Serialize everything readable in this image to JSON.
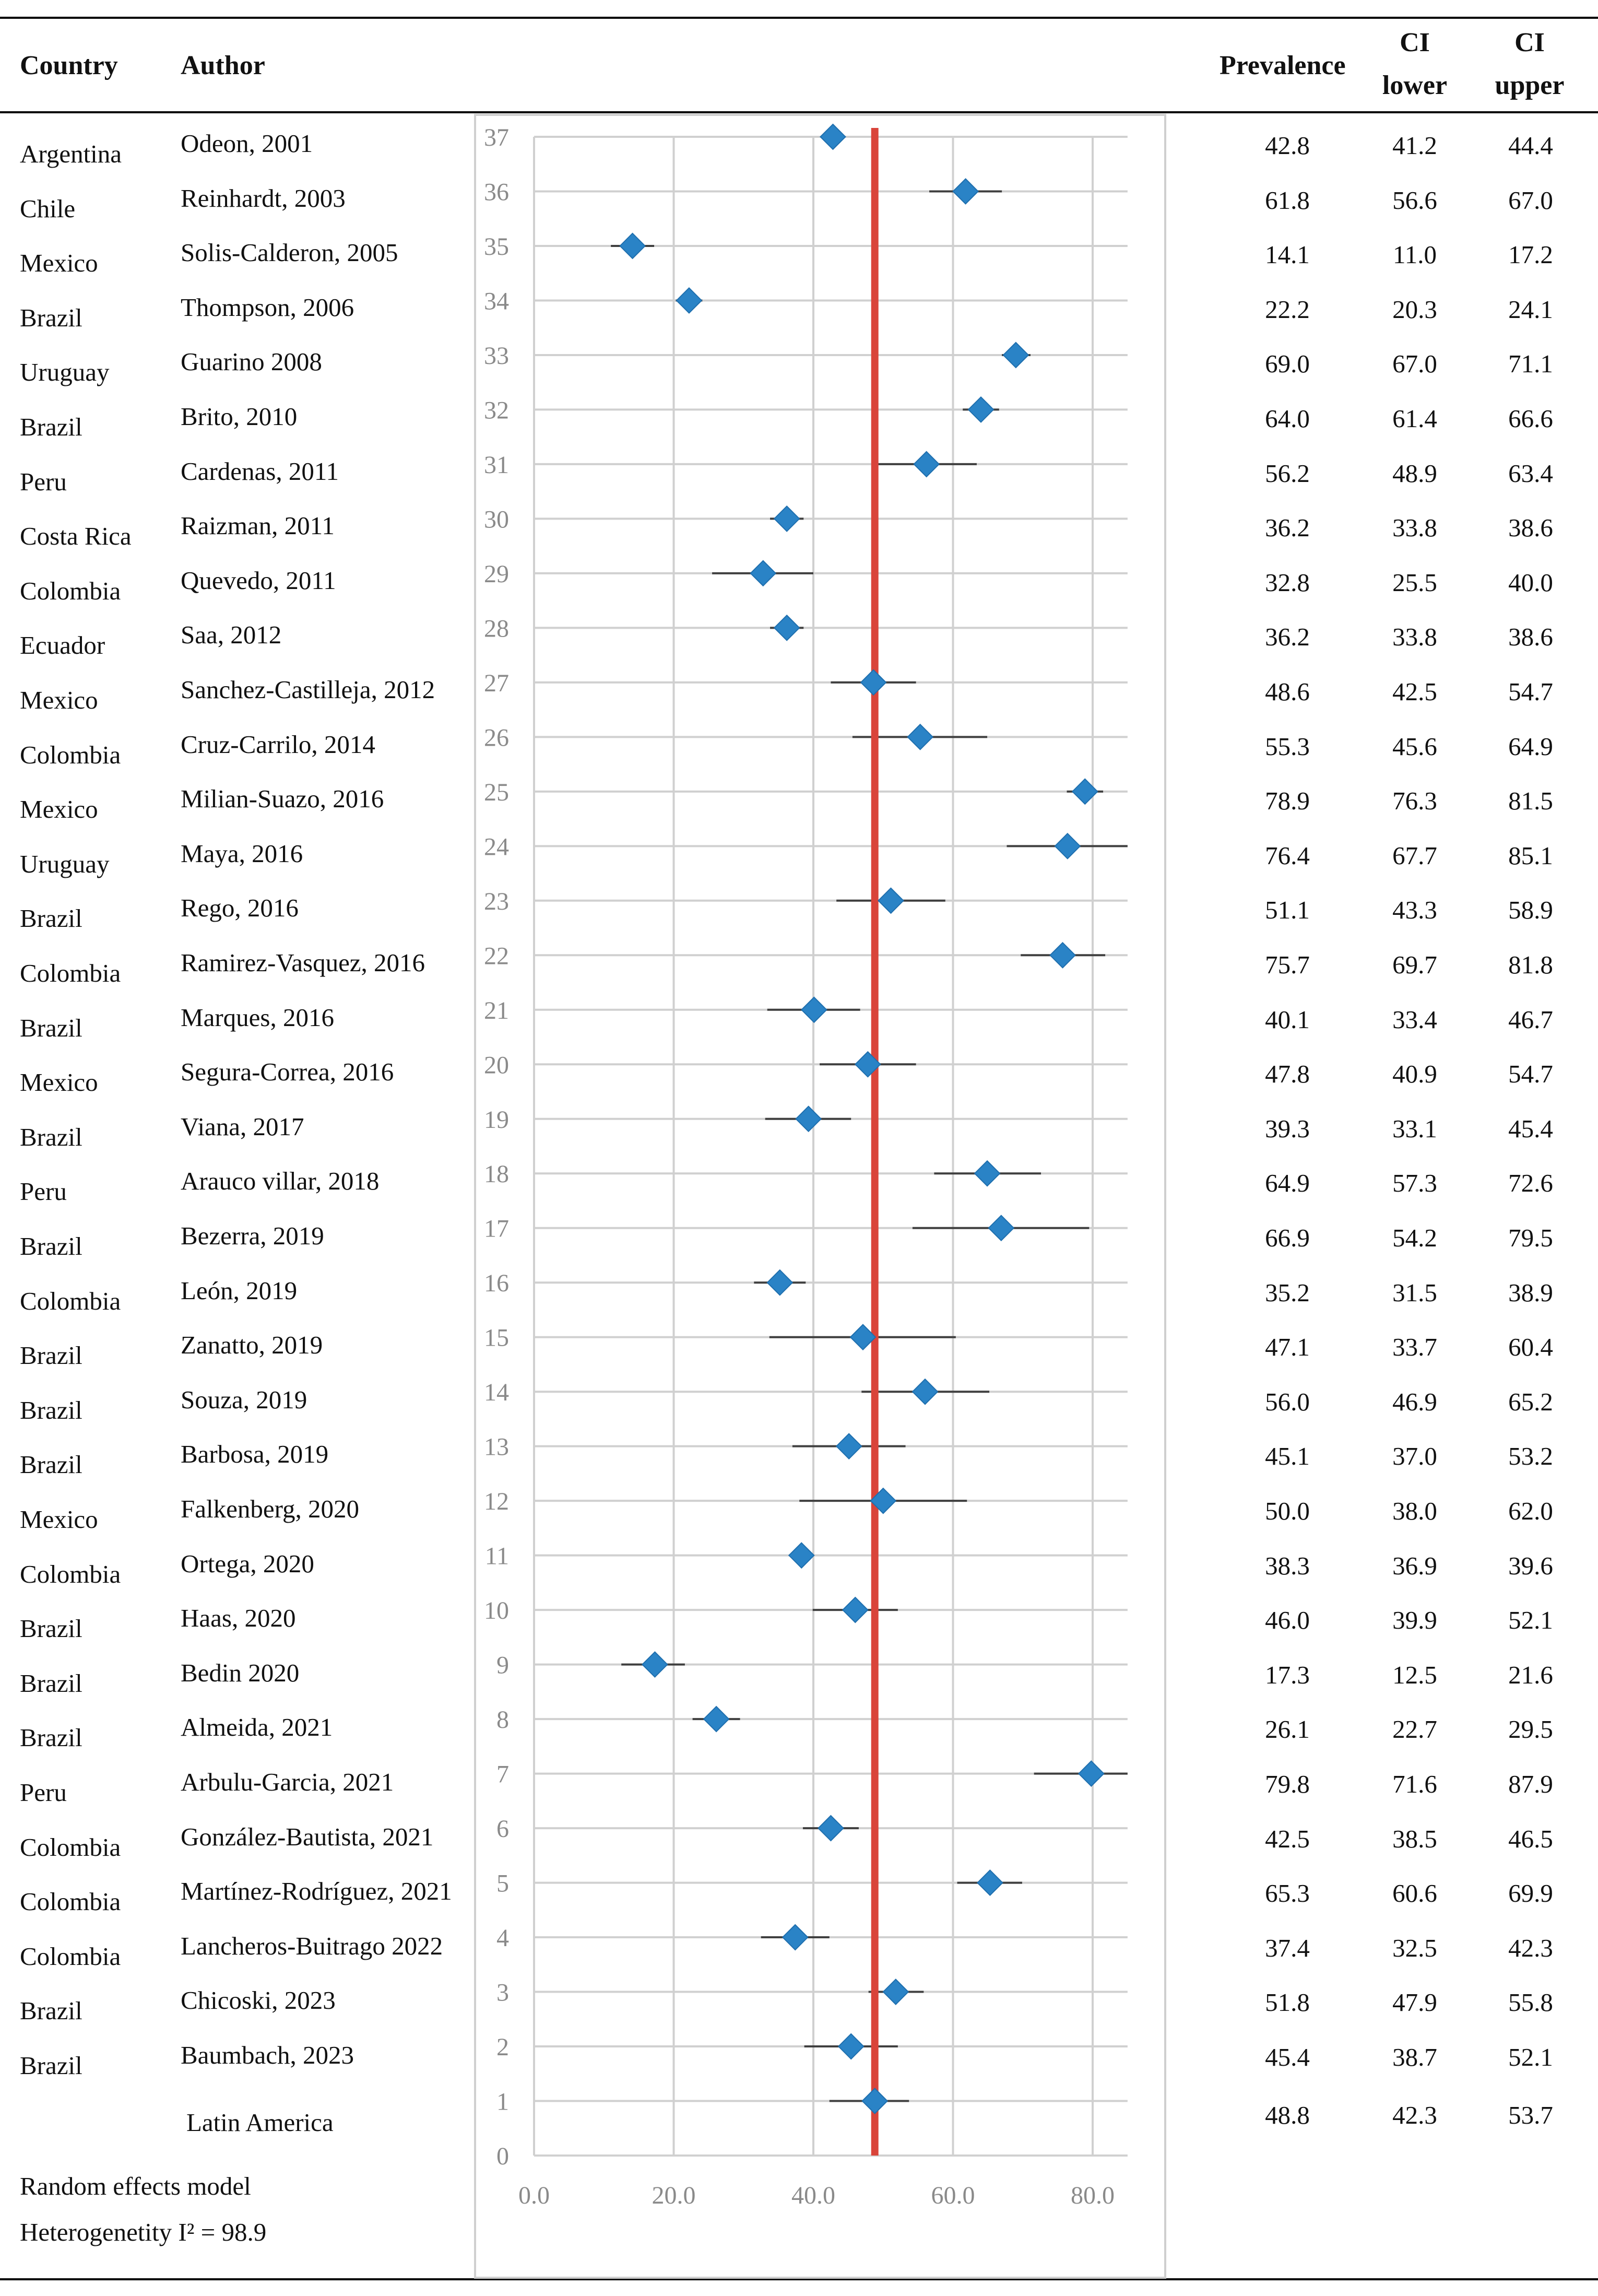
{
  "header": {
    "country": "Country",
    "author": "Author",
    "prevalence": "Prevalence",
    "ci_lower_line1": "CI",
    "ci_lower_line2": "lower",
    "ci_upper_line1": "CI",
    "ci_upper_line2": "upper"
  },
  "rows": [
    {
      "country": "Argentina",
      "author": "Odeon, 2001",
      "prev": "42.8",
      "lo": "41.2",
      "hi": "44.4"
    },
    {
      "country": "Chile",
      "author": "Reinhardt, 2003",
      "prev": "61.8",
      "lo": "56.6",
      "hi": "67.0"
    },
    {
      "country": "Mexico",
      "author": "Solis-Calderon, 2005",
      "prev": "14.1",
      "lo": "11.0",
      "hi": "17.2"
    },
    {
      "country": "Brazil",
      "author": "Thompson, 2006",
      "prev": "22.2",
      "lo": "20.3",
      "hi": "24.1"
    },
    {
      "country": "Uruguay",
      "author": "Guarino 2008",
      "prev": "69.0",
      "lo": "67.0",
      "hi": "71.1"
    },
    {
      "country": "Brazil",
      "author": "Brito, 2010",
      "prev": "64.0",
      "lo": "61.4",
      "hi": "66.6"
    },
    {
      "country": "Peru",
      "author": "Cardenas, 2011",
      "prev": "56.2",
      "lo": "48.9",
      "hi": "63.4"
    },
    {
      "country": "Costa Rica",
      "author": "Raizman, 2011",
      "prev": "36.2",
      "lo": "33.8",
      "hi": "38.6"
    },
    {
      "country": "Colombia",
      "author": "Quevedo, 2011",
      "prev": "32.8",
      "lo": "25.5",
      "hi": "40.0"
    },
    {
      "country": "Ecuador",
      "author": "Saa, 2012",
      "prev": "36.2",
      "lo": "33.8",
      "hi": "38.6"
    },
    {
      "country": "Mexico",
      "author": "Sanchez-Castilleja, 2012",
      "prev": "48.6",
      "lo": "42.5",
      "hi": "54.7"
    },
    {
      "country": "Colombia",
      "author": "Cruz-Carrilo, 2014",
      "prev": "55.3",
      "lo": "45.6",
      "hi": "64.9"
    },
    {
      "country": "Mexico",
      "author": "Milian-Suazo, 2016",
      "prev": "78.9",
      "lo": "76.3",
      "hi": "81.5"
    },
    {
      "country": "Uruguay",
      "author": "Maya, 2016",
      "prev": "76.4",
      "lo": "67.7",
      "hi": "85.1"
    },
    {
      "country": "Brazil",
      "author": "Rego, 2016",
      "prev": "51.1",
      "lo": "43.3",
      "hi": "58.9"
    },
    {
      "country": "Colombia",
      "author": "Ramirez-Vasquez, 2016",
      "prev": "75.7",
      "lo": "69.7",
      "hi": "81.8"
    },
    {
      "country": "Brazil",
      "author": "Marques, 2016",
      "prev": "40.1",
      "lo": "33.4",
      "hi": "46.7"
    },
    {
      "country": "Mexico",
      "author": "Segura-Correa, 2016",
      "prev": "47.8",
      "lo": "40.9",
      "hi": "54.7"
    },
    {
      "country": "Brazil",
      "author": "Viana, 2017",
      "prev": "39.3",
      "lo": "33.1",
      "hi": "45.4"
    },
    {
      "country": "Peru",
      "author": "Arauco villar, 2018",
      "prev": "64.9",
      "lo": "57.3",
      "hi": "72.6"
    },
    {
      "country": "Brazil",
      "author": "Bezerra, 2019",
      "prev": "66.9",
      "lo": "54.2",
      "hi": "79.5"
    },
    {
      "country": "Colombia",
      "author": "León, 2019",
      "prev": "35.2",
      "lo": "31.5",
      "hi": "38.9"
    },
    {
      "country": "Brazil",
      "author": "Zanatto, 2019",
      "prev": "47.1",
      "lo": "33.7",
      "hi": "60.4"
    },
    {
      "country": "Brazil",
      "author": "Souza, 2019",
      "prev": "56.0",
      "lo": "46.9",
      "hi": "65.2"
    },
    {
      "country": "Brazil",
      "author": "Barbosa, 2019",
      "prev": "45.1",
      "lo": "37.0",
      "hi": "53.2"
    },
    {
      "country": "Mexico",
      "author": "Falkenberg, 2020",
      "prev": "50.0",
      "lo": "38.0",
      "hi": "62.0"
    },
    {
      "country": "Colombia",
      "author": "Ortega, 2020",
      "prev": "38.3",
      "lo": "36.9",
      "hi": "39.6"
    },
    {
      "country": "Brazil",
      "author": "Haas, 2020",
      "prev": "46.0",
      "lo": "39.9",
      "hi": "52.1"
    },
    {
      "country": "Brazil",
      "author": "Bedin 2020",
      "prev": "17.3",
      "lo": "12.5",
      "hi": "21.6"
    },
    {
      "country": "Brazil",
      "author": "Almeida, 2021",
      "prev": "26.1",
      "lo": "22.7",
      "hi": "29.5"
    },
    {
      "country": "Peru",
      "author": "Arbulu-Garcia, 2021",
      "prev": "79.8",
      "lo": "71.6",
      "hi": "87.9"
    },
    {
      "country": "Colombia",
      "author": "González-Bautista, 2021",
      "prev": "42.5",
      "lo": "38.5",
      "hi": "46.5"
    },
    {
      "country": "Colombia",
      "author": "Martínez-Rodríguez, 2021",
      "prev": "65.3",
      "lo": "60.6",
      "hi": "69.9"
    },
    {
      "country": "Colombia",
      "author": "Lancheros-Buitrago 2022",
      "prev": "37.4",
      "lo": "32.5",
      "hi": "42.3"
    },
    {
      "country": "Brazil",
      "author": "Chicoski, 2023",
      "prev": "51.8",
      "lo": "47.9",
      "hi": "55.8"
    },
    {
      "country": "Brazil",
      "author": "Baumbach, 2023",
      "prev": "45.4",
      "lo": "38.7",
      "hi": "52.1"
    }
  ],
  "summary": {
    "label": "Latin America",
    "prev": "48.8",
    "lo": "42.3",
    "hi": "53.7"
  },
  "footer": {
    "model": "Random effects model",
    "heterogeneity": "Heterogenetity I² = 98.9"
  },
  "colors": {
    "marker": "#2a83c6",
    "pooled_line": "#d9443a",
    "grid": "#d0d0d0",
    "tick_text": "#8a8a8a"
  },
  "chart_data": {
    "type": "scatter",
    "title": "",
    "xlabel": "",
    "ylabel": "",
    "xlim": [
      0,
      85
    ],
    "ylim": [
      0,
      37
    ],
    "x_ticks": [
      "0.0",
      "20.0",
      "40.0",
      "60.0",
      "80.0"
    ],
    "x_tick_values": [
      0,
      20,
      40,
      60,
      80
    ],
    "y_ticks": [
      "37",
      "36",
      "35",
      "34",
      "33",
      "32",
      "31",
      "30",
      "29",
      "28",
      "27",
      "26",
      "25",
      "24",
      "23",
      "22",
      "21",
      "20",
      "19",
      "18",
      "17",
      "16",
      "15",
      "14",
      "13",
      "12",
      "11",
      "10",
      "9",
      "8",
      "7",
      "6",
      "5",
      "4",
      "3",
      "2",
      "1",
      "0"
    ],
    "pooled_estimate": 48.8,
    "grid": true,
    "series": [
      {
        "name": "Prevalence",
        "y": [
          37,
          36,
          35,
          34,
          33,
          32,
          31,
          30,
          29,
          28,
          27,
          26,
          25,
          24,
          23,
          22,
          21,
          20,
          19,
          18,
          17,
          16,
          15,
          14,
          13,
          12,
          11,
          10,
          9,
          8,
          7,
          6,
          5,
          4,
          3,
          2,
          1
        ],
        "x": [
          42.8,
          61.8,
          14.1,
          22.2,
          69.0,
          64.0,
          56.2,
          36.2,
          32.8,
          36.2,
          48.6,
          55.3,
          78.9,
          76.4,
          51.1,
          75.7,
          40.1,
          47.8,
          39.3,
          64.9,
          66.9,
          35.2,
          47.1,
          56.0,
          45.1,
          50.0,
          38.3,
          46.0,
          17.3,
          26.1,
          79.8,
          42.5,
          65.3,
          37.4,
          51.8,
          45.4,
          48.8
        ],
        "ci_lower": [
          41.2,
          56.6,
          11.0,
          20.3,
          67.0,
          61.4,
          48.9,
          33.8,
          25.5,
          33.8,
          42.5,
          45.6,
          76.3,
          67.7,
          43.3,
          69.7,
          33.4,
          40.9,
          33.1,
          57.3,
          54.2,
          31.5,
          33.7,
          46.9,
          37.0,
          38.0,
          36.9,
          39.9,
          12.5,
          22.7,
          71.6,
          38.5,
          60.6,
          32.5,
          47.9,
          38.7,
          42.3
        ],
        "ci_upper": [
          44.4,
          67.0,
          17.2,
          24.1,
          71.1,
          66.6,
          63.4,
          38.6,
          40.0,
          38.6,
          54.7,
          64.9,
          81.5,
          85.1,
          58.9,
          81.8,
          46.7,
          54.7,
          45.4,
          72.6,
          79.5,
          38.9,
          60.4,
          65.2,
          53.2,
          62.0,
          39.6,
          52.1,
          21.6,
          29.5,
          87.9,
          46.5,
          69.9,
          42.3,
          55.8,
          52.1,
          53.7
        ]
      }
    ]
  }
}
